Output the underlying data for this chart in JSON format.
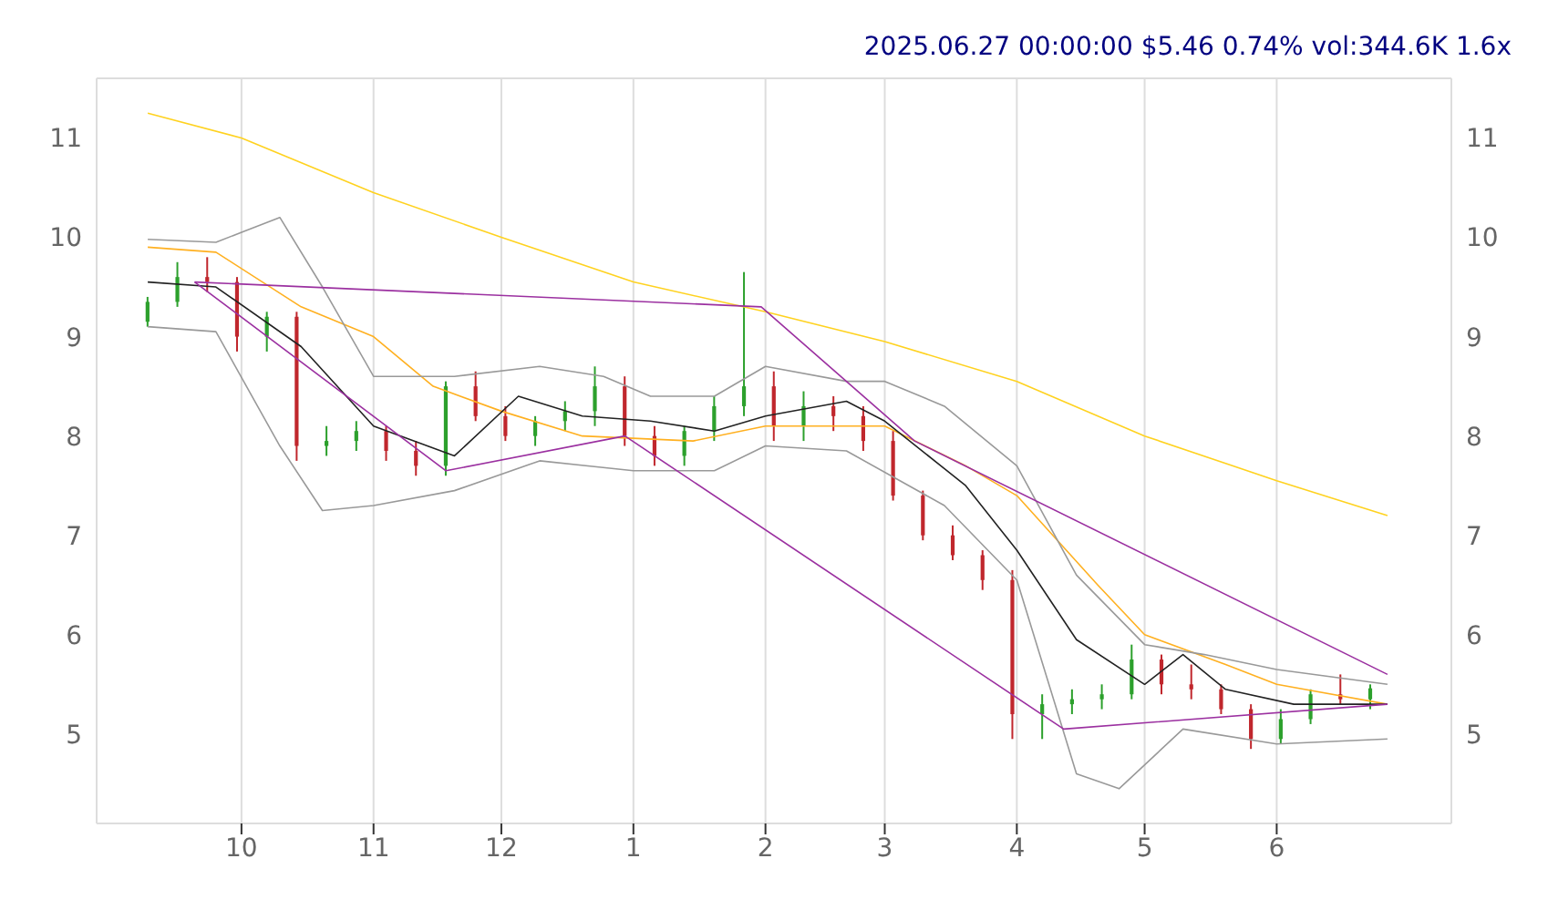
{
  "chart_data": {
    "type": "candlestick",
    "title": "2025.06.27 00:00:00 $5.46 0.74% vol:344.6K 1.6x",
    "x": [
      "2024-09-09",
      "2024-09-16",
      "2024-09-23",
      "2024-09-30",
      "2024-10-07",
      "2024-10-14",
      "2024-10-21",
      "2024-10-28",
      "2024-11-04",
      "2024-11-11",
      "2024-11-18",
      "2024-11-25",
      "2024-12-02",
      "2024-12-09",
      "2024-12-16",
      "2024-12-23",
      "2024-12-30",
      "2025-01-06",
      "2025-01-13",
      "2025-01-20",
      "2025-01-27",
      "2025-02-03",
      "2025-02-10",
      "2025-02-17",
      "2025-02-24",
      "2025-03-03",
      "2025-03-10",
      "2025-03-17",
      "2025-03-24",
      "2025-03-31",
      "2025-04-07",
      "2025-04-14",
      "2025-04-21",
      "2025-04-28",
      "2025-05-05",
      "2025-05-12",
      "2025-05-19",
      "2025-05-26",
      "2025-06-02",
      "2025-06-09",
      "2025-06-16",
      "2025-06-23"
    ],
    "ohlc": [
      [
        9.15,
        9.4,
        9.1,
        9.35
      ],
      [
        9.35,
        9.75,
        9.3,
        9.6
      ],
      [
        9.6,
        9.8,
        9.45,
        9.55
      ],
      [
        9.55,
        9.6,
        8.85,
        9.0
      ],
      [
        9.0,
        9.25,
        8.85,
        9.2
      ],
      [
        9.2,
        9.25,
        7.75,
        7.9
      ],
      [
        7.9,
        8.1,
        7.8,
        7.95
      ],
      [
        7.95,
        8.15,
        7.85,
        8.05
      ],
      [
        8.05,
        8.1,
        7.75,
        7.85
      ],
      [
        7.85,
        7.95,
        7.6,
        7.7
      ],
      [
        7.7,
        8.55,
        7.6,
        8.5
      ],
      [
        8.5,
        8.65,
        8.15,
        8.2
      ],
      [
        8.2,
        8.3,
        7.95,
        8.0
      ],
      [
        8.0,
        8.2,
        7.9,
        8.15
      ],
      [
        8.15,
        8.35,
        8.05,
        8.25
      ],
      [
        8.25,
        8.7,
        8.1,
        8.5
      ],
      [
        8.5,
        8.6,
        7.9,
        8.0
      ],
      [
        8.0,
        8.1,
        7.7,
        7.8
      ],
      [
        7.8,
        8.1,
        7.7,
        8.05
      ],
      [
        8.05,
        8.4,
        7.95,
        8.3
      ],
      [
        8.3,
        9.65,
        8.2,
        8.5
      ],
      [
        8.5,
        8.65,
        7.95,
        8.1
      ],
      [
        8.1,
        8.45,
        7.95,
        8.3
      ],
      [
        8.3,
        8.4,
        8.05,
        8.2
      ],
      [
        8.2,
        8.3,
        7.85,
        7.95
      ],
      [
        7.95,
        8.05,
        7.35,
        7.4
      ],
      [
        7.4,
        7.45,
        6.95,
        7.0
      ],
      [
        7.0,
        7.1,
        6.75,
        6.8
      ],
      [
        6.8,
        6.85,
        6.45,
        6.55
      ],
      [
        6.55,
        6.65,
        4.95,
        5.2
      ],
      [
        5.2,
        5.4,
        4.95,
        5.3
      ],
      [
        5.3,
        5.45,
        5.2,
        5.35
      ],
      [
        5.35,
        5.5,
        5.25,
        5.4
      ],
      [
        5.4,
        5.9,
        5.35,
        5.75
      ],
      [
        5.75,
        5.8,
        5.4,
        5.5
      ],
      [
        5.5,
        5.7,
        5.35,
        5.45
      ],
      [
        5.45,
        5.5,
        5.2,
        5.25
      ],
      [
        5.25,
        5.3,
        4.85,
        4.95
      ],
      [
        4.95,
        5.25,
        4.9,
        5.15
      ],
      [
        5.15,
        5.45,
        5.1,
        5.4
      ],
      [
        5.4,
        5.6,
        5.3,
        5.35
      ],
      [
        5.35,
        5.5,
        5.25,
        5.46
      ]
    ],
    "colors": [
      "#2ca02c",
      "#2ca02c",
      "#c0272d",
      "#c0272d",
      "#2ca02c",
      "#c0272d",
      "#2ca02c",
      "#2ca02c",
      "#c0272d",
      "#c0272d",
      "#2ca02c",
      "#c0272d",
      "#c0272d",
      "#2ca02c",
      "#2ca02c",
      "#2ca02c",
      "#c0272d",
      "#c0272d",
      "#2ca02c",
      "#2ca02c",
      "#2ca02c",
      "#c0272d",
      "#2ca02c",
      "#c0272d",
      "#c0272d",
      "#c0272d",
      "#c0272d",
      "#c0272d",
      "#c0272d",
      "#c0272d",
      "#2ca02c",
      "#2ca02c",
      "#2ca02c",
      "#2ca02c",
      "#c0272d",
      "#c0272d",
      "#c0272d",
      "#c0272d",
      "#2ca02c",
      "#2ca02c",
      "#c0272d",
      "#2ca02c"
    ],
    "series": [
      {
        "type": "line",
        "color": "#ffd21f",
        "x": [
          "2024-09-09",
          "2024-10-01",
          "2024-11-01",
          "2024-12-01",
          "2025-01-01",
          "2025-02-01",
          "2025-03-01",
          "2025-04-01",
          "2025-05-01",
          "2025-06-01",
          "2025-06-27"
        ],
        "values": [
          11.25,
          11.0,
          10.45,
          10.0,
          9.55,
          9.25,
          8.95,
          8.55,
          8.0,
          7.55,
          7.2
        ]
      },
      {
        "type": "line",
        "color": "#ffb020",
        "x": [
          "2024-09-09",
          "2024-09-25",
          "2024-10-15",
          "2024-11-01",
          "2024-11-15",
          "2024-12-01",
          "2024-12-20",
          "2025-01-15",
          "2025-02-01",
          "2025-03-01",
          "2025-03-20",
          "2025-04-01",
          "2025-04-20",
          "2025-05-01",
          "2025-05-20",
          "2025-06-01",
          "2025-06-27"
        ],
        "values": [
          9.9,
          9.85,
          9.3,
          9.0,
          8.5,
          8.25,
          8.0,
          7.95,
          8.1,
          8.1,
          7.7,
          7.4,
          6.5,
          6.0,
          5.7,
          5.5,
          5.3
        ]
      },
      {
        "type": "line",
        "color": "#222222",
        "x": [
          "2024-09-09",
          "2024-09-25",
          "2024-10-15",
          "2024-11-01",
          "2024-11-20",
          "2024-12-05",
          "2024-12-20",
          "2025-01-05",
          "2025-01-20",
          "2025-02-01",
          "2025-02-20",
          "2025-03-01",
          "2025-03-20",
          "2025-04-01",
          "2025-04-15",
          "2025-05-01",
          "2025-05-10",
          "2025-05-20",
          "2025-06-05",
          "2025-06-27"
        ],
        "values": [
          9.55,
          9.5,
          8.9,
          8.1,
          7.8,
          8.4,
          8.2,
          8.15,
          8.05,
          8.2,
          8.35,
          8.15,
          7.5,
          6.85,
          5.95,
          5.5,
          5.8,
          5.45,
          5.3,
          5.3
        ]
      },
      {
        "type": "line",
        "color": "#999999",
        "x": [
          "2024-09-09",
          "2024-09-25",
          "2024-10-10",
          "2024-10-20",
          "2024-11-01",
          "2024-11-20",
          "2024-12-10",
          "2024-12-25",
          "2025-01-05",
          "2025-01-20",
          "2025-02-01",
          "2025-02-20",
          "2025-03-01",
          "2025-03-15",
          "2025-04-01",
          "2025-04-15",
          "2025-05-01",
          "2025-05-15",
          "2025-06-01",
          "2025-06-27"
        ],
        "values": [
          9.98,
          9.95,
          10.2,
          9.5,
          8.6,
          8.6,
          8.7,
          8.6,
          8.4,
          8.4,
          8.7,
          8.55,
          8.55,
          8.3,
          7.7,
          6.6,
          5.9,
          5.8,
          5.65,
          5.5
        ]
      },
      {
        "type": "line",
        "color": "#999999",
        "x": [
          "2024-09-09",
          "2024-09-25",
          "2024-10-10",
          "2024-10-20",
          "2024-11-01",
          "2024-11-20",
          "2024-12-10",
          "2025-01-01",
          "2025-01-20",
          "2025-02-01",
          "2025-02-20",
          "2025-03-15",
          "2025-04-01",
          "2025-04-15",
          "2025-04-25",
          "2025-05-10",
          "2025-06-01",
          "2025-06-27"
        ],
        "values": [
          9.1,
          9.05,
          7.9,
          7.25,
          7.3,
          7.45,
          7.75,
          7.65,
          7.65,
          7.9,
          7.85,
          7.3,
          6.55,
          4.6,
          4.45,
          5.05,
          4.9,
          4.95
        ]
      },
      {
        "type": "line",
        "color": "#9b30a0",
        "x": [
          "2024-09-20",
          "2025-01-31",
          "2025-03-08",
          "2025-06-27"
        ],
        "values": [
          9.55,
          9.3,
          7.95,
          5.6
        ]
      },
      {
        "type": "line",
        "color": "#9b30a0",
        "x": [
          "2024-09-20",
          "2024-11-18",
          "2024-12-30",
          "2025-04-12",
          "2025-06-27"
        ],
        "values": [
          9.55,
          7.65,
          8.0,
          5.05,
          5.3
        ]
      }
    ],
    "xlim": [
      "2024-08-28",
      "2025-07-12"
    ],
    "xticks": [
      {
        "value": "2024-10-01",
        "label": "10"
      },
      {
        "value": "2024-11-01",
        "label": "11"
      },
      {
        "value": "2024-12-01",
        "label": "12"
      },
      {
        "value": "2025-01-01",
        "label": "1"
      },
      {
        "value": "2025-02-01",
        "label": "2"
      },
      {
        "value": "2025-03-01",
        "label": "3"
      },
      {
        "value": "2025-04-01",
        "label": "4"
      },
      {
        "value": "2025-05-01",
        "label": "5"
      },
      {
        "value": "2025-06-01",
        "label": "6"
      }
    ],
    "ylim": [
      4.1,
      11.6
    ],
    "yticks": [
      5,
      6,
      7,
      8,
      9,
      10,
      11
    ],
    "y2lim": [
      4.1,
      11.6
    ],
    "y2ticks": [
      5,
      6,
      7,
      8,
      9,
      10,
      11
    ],
    "grid": true,
    "legend": false
  }
}
